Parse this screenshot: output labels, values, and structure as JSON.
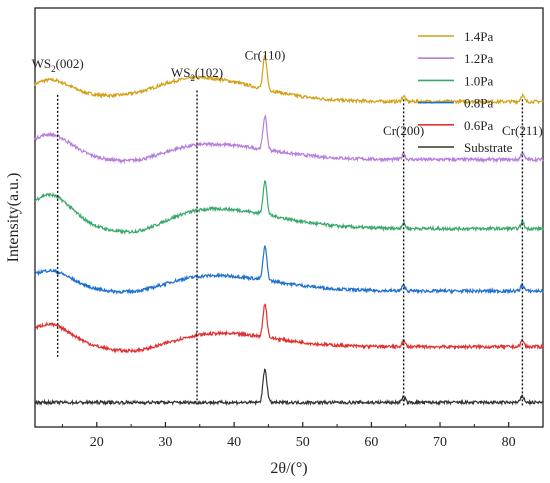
{
  "chart_data": {
    "type": "line",
    "xlabel": "2θ/(°)",
    "ylabel": "Intensity(a.u.)",
    "xlim": [
      11,
      85
    ],
    "x_ticks": [
      20,
      30,
      40,
      50,
      60,
      70,
      80
    ],
    "y_ticks": false,
    "legend_position": "top-right",
    "series": [
      {
        "name": "1.4Pa",
        "color": "#d4a017",
        "baseline": 8.2,
        "hump": 0.55,
        "hump_center": 34,
        "hump_width": 9,
        "low_bump": 0.45
      },
      {
        "name": "1.2Pa",
        "color": "#b57edc",
        "baseline": 6.9,
        "hump": 0.35,
        "hump_center": 36,
        "hump_width": 9,
        "low_bump": 0.55
      },
      {
        "name": "1.0Pa",
        "color": "#3aa86b",
        "baseline": 5.35,
        "hump": 0.45,
        "hump_center": 37,
        "hump_width": 9,
        "low_bump": 0.75
      },
      {
        "name": "0.8Pa",
        "color": "#1f6fcf",
        "baseline": 3.95,
        "hump": 0.35,
        "hump_center": 37,
        "hump_width": 9,
        "low_bump": 0.45
      },
      {
        "name": "0.6Pa",
        "color": "#e03030",
        "baseline": 2.7,
        "hump": 0.3,
        "hump_center": 38,
        "hump_width": 8,
        "low_bump": 0.5
      },
      {
        "name": "Substrate",
        "color": "#333333",
        "baseline": 1.45,
        "hump": 0.0,
        "hump_center": 38,
        "hump_width": 8,
        "low_bump": 0.0
      }
    ],
    "peaks": [
      {
        "label": "Cr(110)",
        "x": 44.5,
        "height": 0.75
      },
      {
        "label": "Cr(200)",
        "x": 64.7,
        "height": 0.12
      },
      {
        "label": "Cr(211)",
        "x": 82.0,
        "height": 0.14
      }
    ],
    "annotations": [
      {
        "base": "WS",
        "sub": "2",
        "rest": "(002)",
        "x": 14.3,
        "label_y": 8.95,
        "line_top": 8.35,
        "line_bottom": 2.45
      },
      {
        "base": "WS",
        "sub": "2",
        "rest": "(102)",
        "x": 34.6,
        "label_y": 8.75,
        "line_top": 8.45,
        "line_bottom": 1.5
      },
      {
        "text": "Cr(110)",
        "x": 44.5,
        "label_y": 9.15,
        "line_top": 0,
        "line_bottom": 0
      },
      {
        "text": "Cr(200)",
        "x": 64.7,
        "label_y": 7.45,
        "line_top": 8.25,
        "line_bottom": 1.35
      },
      {
        "text": "Cr(211)",
        "x": 82.0,
        "label_y": 7.45,
        "line_top": 8.25,
        "line_bottom": 1.35
      }
    ],
    "y_range": [
      0.9,
      10.3
    ]
  }
}
